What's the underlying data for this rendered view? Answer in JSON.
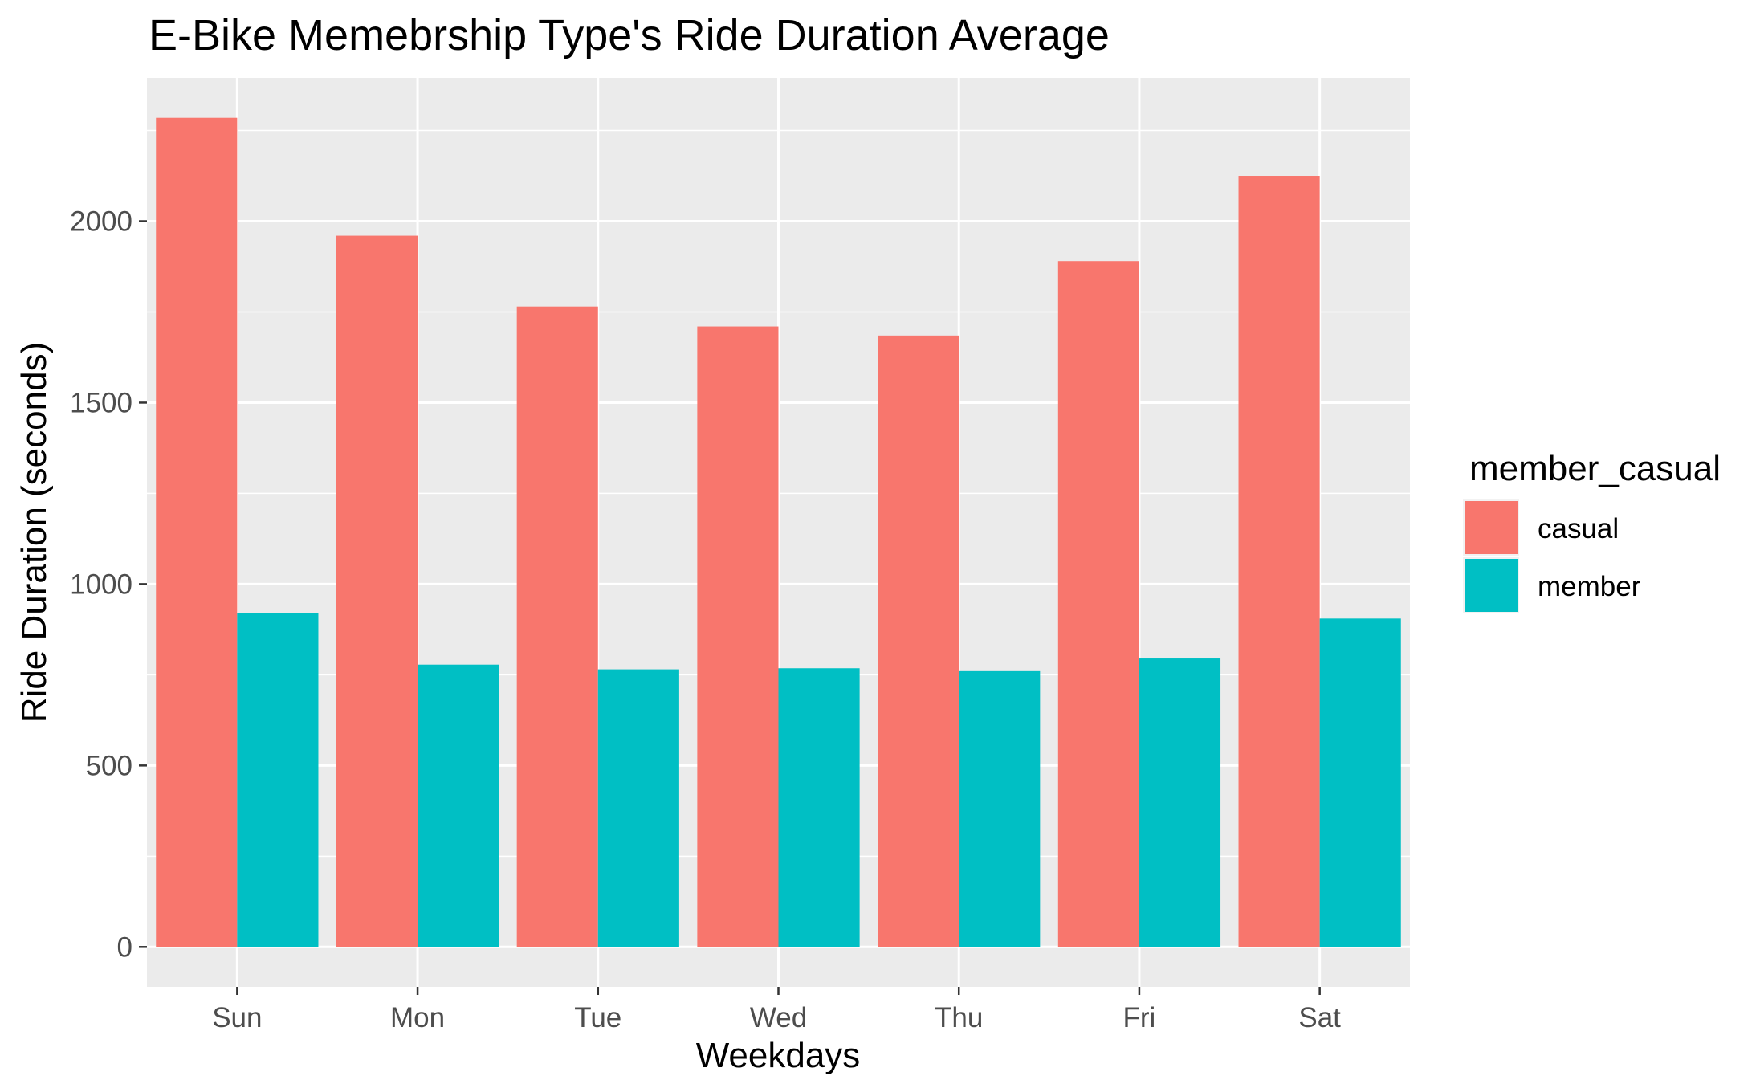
{
  "chart_data": {
    "type": "bar",
    "title": "E-Bike Memebrship Type's Ride Duration Average",
    "xlabel": "Weekdays",
    "ylabel": "Ride Duration (seconds)",
    "categories": [
      "Sun",
      "Mon",
      "Tue",
      "Wed",
      "Thu",
      "Fri",
      "Sat"
    ],
    "series": [
      {
        "name": "casual",
        "values": [
          2285,
          1960,
          1765,
          1710,
          1685,
          1890,
          2125
        ]
      },
      {
        "name": "member",
        "values": [
          920,
          778,
          765,
          768,
          760,
          795,
          905
        ]
      }
    ],
    "ylim": [
      -110,
      2395
    ],
    "yticks": [
      0,
      500,
      1000,
      1500,
      2000
    ],
    "ytick_labels": [
      "0",
      "500",
      "1000",
      "1500",
      "2000"
    ],
    "grid": true,
    "legend": {
      "title": "member_casual",
      "placement": "right",
      "entries": [
        "casual",
        "member"
      ]
    },
    "colors": {
      "casual": "#F8766D",
      "member": "#00BFC4",
      "panel": "#EBEBEB",
      "grid": "#FFFFFF",
      "tick_text": "#4D4D4D"
    }
  }
}
